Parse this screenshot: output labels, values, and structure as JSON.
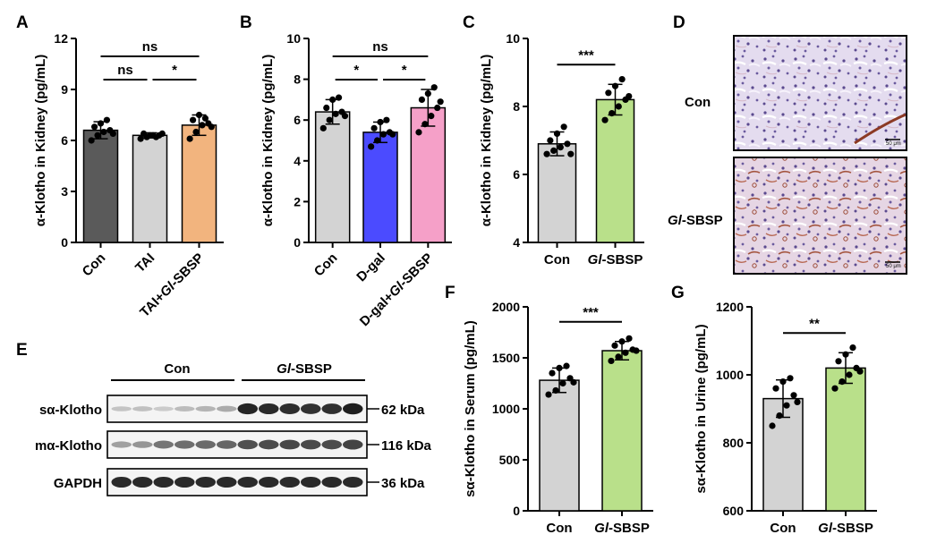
{
  "panel_labels": {
    "A": "A",
    "B": "B",
    "C": "C",
    "D": "D",
    "E": "E",
    "F": "F",
    "G": "G"
  },
  "chart_data": [
    {
      "id": "A",
      "type": "bar",
      "ylabel": "α-Klotho in Kidney (pg/mL)",
      "ylim": [
        0,
        12
      ],
      "yticks": [
        0,
        3,
        6,
        9,
        12
      ],
      "categories": [
        "Con",
        "TAI",
        "TAI+Gl-SBSP"
      ],
      "category_display": [
        [
          "Con"
        ],
        [
          "TAI"
        ],
        [
          "TAI+",
          "Gl",
          "-SBSP"
        ]
      ],
      "category_italic": [
        [
          false
        ],
        [
          false
        ],
        [
          false,
          true,
          false
        ]
      ],
      "tick_rotation": -45,
      "values": [
        6.6,
        6.3,
        6.9
      ],
      "errors": [
        0.5,
        0.15,
        0.6
      ],
      "colors": [
        "#5a5a5a",
        "#d3d3d3",
        "#f2b47e"
      ],
      "points": [
        [
          6.0,
          6.3,
          6.5,
          6.6,
          6.8,
          7.0,
          7.2,
          6.4
        ],
        [
          6.1,
          6.2,
          6.3,
          6.3,
          6.4,
          6.3,
          6.2,
          6.4
        ],
        [
          6.1,
          6.5,
          6.9,
          7.0,
          7.2,
          7.5,
          7.3,
          6.8
        ]
      ],
      "comparisons": [
        {
          "from": 0,
          "to": 2,
          "label": "ns"
        },
        {
          "from": 0,
          "to": 1,
          "label": "ns"
        },
        {
          "from": 1,
          "to": 2,
          "label": "*"
        }
      ]
    },
    {
      "id": "B",
      "type": "bar",
      "ylabel": "α-Klotho in Kidney (pg/mL)",
      "ylim": [
        0,
        10
      ],
      "yticks": [
        0,
        2,
        4,
        6,
        8,
        10
      ],
      "categories": [
        "Con",
        "D-gal",
        "D-gal+Gl-SBSP"
      ],
      "category_display": [
        [
          "Con"
        ],
        [
          "D-gal"
        ],
        [
          "D-gal+",
          "Gl",
          "-SBSP"
        ]
      ],
      "category_italic": [
        [
          false
        ],
        [
          false
        ],
        [
          false,
          true,
          false
        ]
      ],
      "tick_rotation": -45,
      "values": [
        6.4,
        5.4,
        6.6
      ],
      "errors": [
        0.6,
        0.5,
        0.9
      ],
      "colors": [
        "#d3d3d3",
        "#4b4bff",
        "#f5a0c8"
      ],
      "points": [
        [
          5.6,
          6.0,
          6.3,
          6.4,
          6.6,
          7.0,
          7.1,
          6.2
        ],
        [
          4.7,
          5.0,
          5.3,
          5.4,
          5.6,
          5.9,
          6.0,
          5.3
        ],
        [
          5.4,
          5.8,
          6.2,
          6.6,
          7.0,
          7.3,
          7.6,
          6.9
        ]
      ],
      "comparisons": [
        {
          "from": 0,
          "to": 2,
          "label": "ns"
        },
        {
          "from": 0,
          "to": 1,
          "label": "*"
        },
        {
          "from": 1,
          "to": 2,
          "label": "*"
        }
      ]
    },
    {
      "id": "C",
      "type": "bar",
      "ylabel": "α-Klotho in Kidney (pg/mL)",
      "ylim": [
        4,
        10
      ],
      "yticks": [
        4,
        6,
        8,
        10
      ],
      "categories": [
        "Con",
        "Gl-SBSP"
      ],
      "category_display": [
        [
          "Con"
        ],
        [
          "Gl",
          "-SBSP"
        ]
      ],
      "category_italic": [
        [
          false
        ],
        [
          true,
          false
        ]
      ],
      "tick_rotation": 0,
      "values": [
        6.9,
        8.2
      ],
      "errors": [
        0.35,
        0.45
      ],
      "colors": [
        "#d3d3d3",
        "#b9e08a"
      ],
      "points": [
        [
          6.6,
          6.7,
          6.8,
          6.9,
          7.0,
          7.2,
          7.4,
          6.6
        ],
        [
          7.6,
          7.8,
          8.0,
          8.2,
          8.4,
          8.6,
          8.8,
          8.3
        ]
      ],
      "comparisons": [
        {
          "from": 0,
          "to": 1,
          "label": "***"
        }
      ]
    },
    {
      "id": "F",
      "type": "bar",
      "ylabel": "sα-Klotho in Serum (pg/mL)",
      "ylim": [
        0,
        2000
      ],
      "yticks": [
        0,
        500,
        1000,
        1500,
        2000
      ],
      "categories": [
        "Con",
        "Gl-SBSP"
      ],
      "category_display": [
        [
          "Con"
        ],
        [
          "Gl",
          "-SBSP"
        ]
      ],
      "category_italic": [
        [
          false
        ],
        [
          true,
          false
        ]
      ],
      "tick_rotation": 0,
      "values": [
        1280,
        1570
      ],
      "errors": [
        120,
        90
      ],
      "colors": [
        "#d3d3d3",
        "#b9e08a"
      ],
      "points": [
        [
          1140,
          1180,
          1250,
          1300,
          1350,
          1400,
          1420,
          1260
        ],
        [
          1470,
          1510,
          1550,
          1580,
          1620,
          1660,
          1690,
          1570
        ]
      ],
      "comparisons": [
        {
          "from": 0,
          "to": 1,
          "label": "***"
        }
      ]
    },
    {
      "id": "G",
      "type": "bar",
      "ylabel": "sα-Klotho in Urine (pg/mL)",
      "ylim": [
        600,
        1200
      ],
      "yticks": [
        600,
        800,
        1000,
        1200
      ],
      "categories": [
        "Con",
        "Gl-SBSP"
      ],
      "category_display": [
        [
          "Con"
        ],
        [
          "Gl",
          "-SBSP"
        ]
      ],
      "category_italic": [
        [
          false
        ],
        [
          true,
          false
        ]
      ],
      "tick_rotation": 0,
      "values": [
        930,
        1020
      ],
      "errors": [
        55,
        45
      ],
      "colors": [
        "#d3d3d3",
        "#b9e08a"
      ],
      "points": [
        [
          850,
          880,
          910,
          940,
          960,
          980,
          990,
          920
        ],
        [
          960,
          980,
          1000,
          1020,
          1040,
          1060,
          1080,
          1010
        ]
      ],
      "comparisons": [
        {
          "from": 0,
          "to": 1,
          "label": "**"
        }
      ]
    }
  ],
  "panel_D": {
    "rows": [
      {
        "label": "Con",
        "label_italic_part": "",
        "scale_bar": "50 μm"
      },
      {
        "label": "-SBSP",
        "label_italic_part": "Gl",
        "scale_bar": "50 μm"
      }
    ]
  },
  "panel_E": {
    "groups": [
      {
        "label": "Con",
        "italic_part": ""
      },
      {
        "label": "-SBSP",
        "italic_part": "Gl"
      }
    ],
    "blots": [
      {
        "name": "sα-Klotho",
        "mw": "62 kDa",
        "intensities": [
          0.18,
          0.2,
          0.15,
          0.22,
          0.25,
          0.3,
          0.92,
          0.9,
          0.88,
          0.86,
          0.87,
          0.95
        ]
      },
      {
        "name": "mα-Klotho",
        "mw": "116 kDa",
        "intensities": [
          0.35,
          0.4,
          0.55,
          0.58,
          0.6,
          0.62,
          0.72,
          0.74,
          0.76,
          0.75,
          0.74,
          0.78
        ]
      },
      {
        "name": "GAPDH",
        "mw": "36 kDa",
        "intensities": [
          0.9,
          0.9,
          0.9,
          0.9,
          0.9,
          0.9,
          0.9,
          0.9,
          0.9,
          0.9,
          0.9,
          0.9
        ]
      }
    ]
  }
}
